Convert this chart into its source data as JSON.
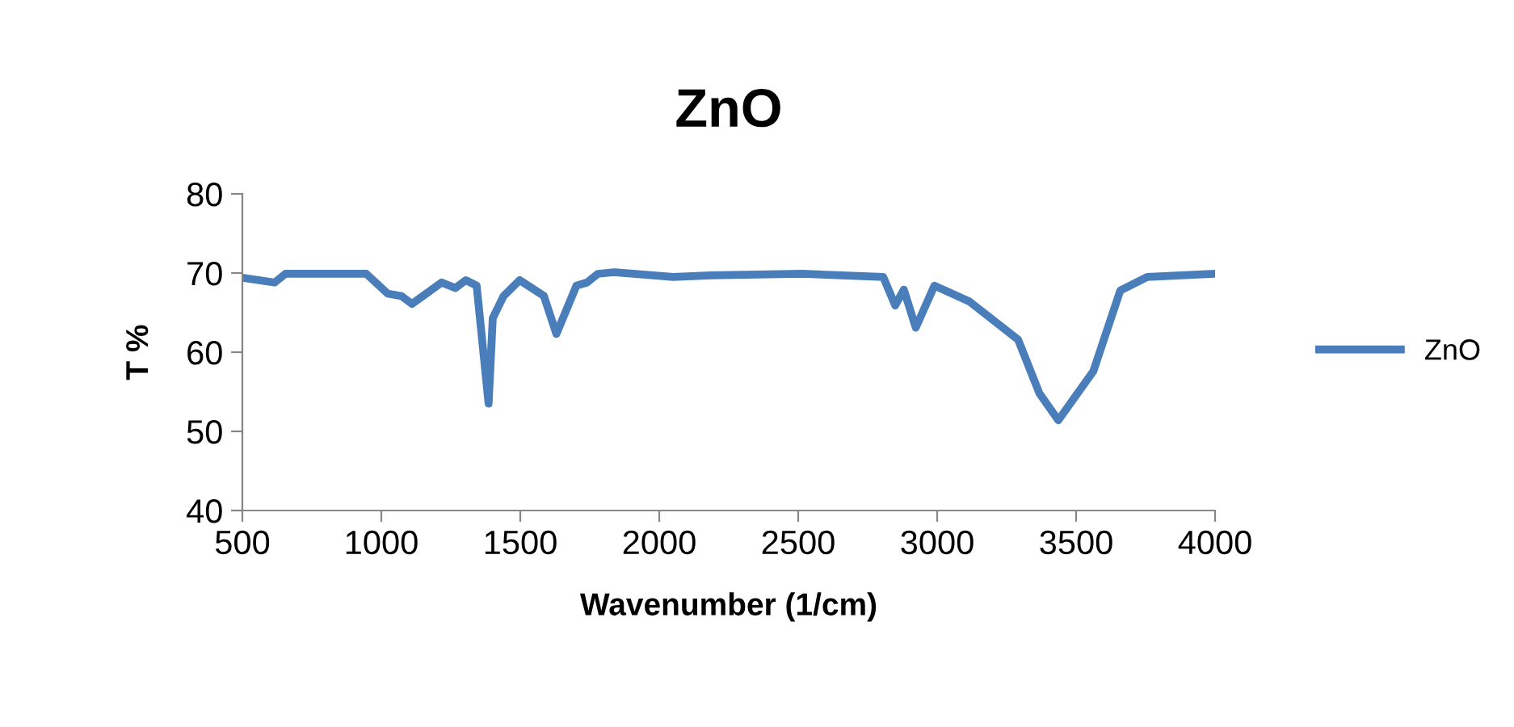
{
  "chart_data": {
    "type": "line",
    "title": "ZnO",
    "xlabel": "Wavenumber (1/cm)",
    "ylabel": "T %",
    "xlim": [
      500,
      4000
    ],
    "ylim": [
      40,
      80
    ],
    "xticks": [
      500,
      1000,
      1500,
      2000,
      2500,
      3000,
      3500,
      4000
    ],
    "yticks": [
      40,
      50,
      60,
      70,
      80
    ],
    "grid": false,
    "legend": "right",
    "marker": "none",
    "line_style": "solid",
    "series": [
      {
        "name": "ZnO",
        "color": "#4a7ebb",
        "x": [
          500,
          616,
          655,
          946,
          1023,
          1072,
          1110,
          1217,
          1266,
          1304,
          1343,
          1386,
          1401,
          1440,
          1498,
          1585,
          1630,
          1702,
          1740,
          1779,
          1837,
          2050,
          2186,
          2516,
          2806,
          2849,
          2880,
          2923,
          2990,
          3116,
          3291,
          3368,
          3436,
          3562,
          3659,
          3756,
          3998
        ],
        "values": [
          69.4,
          68.8,
          69.9,
          69.9,
          67.4,
          67.1,
          66.1,
          68.8,
          68.1,
          69.1,
          68.4,
          53.5,
          64.3,
          67.1,
          69.1,
          67.1,
          62.3,
          68.4,
          68.8,
          69.9,
          70.1,
          69.5,
          69.7,
          69.9,
          69.5,
          65.9,
          67.9,
          63.1,
          68.4,
          66.4,
          61.6,
          54.8,
          51.4,
          57.6,
          67.8,
          69.5,
          69.9
        ]
      }
    ]
  }
}
